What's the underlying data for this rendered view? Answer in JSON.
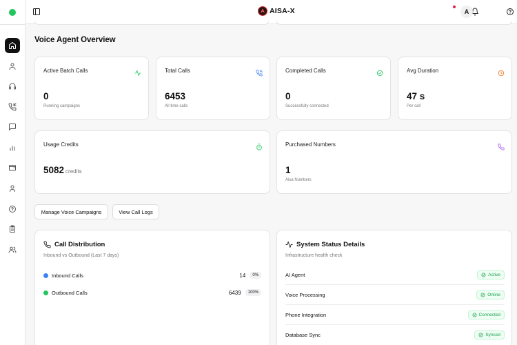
{
  "app": {
    "title": "AISA-X",
    "avatar_initial": "A"
  },
  "page": {
    "title": "Voice Agent Overview"
  },
  "sidebar": {
    "items": [
      {
        "name": "home",
        "active": true
      },
      {
        "name": "users"
      },
      {
        "name": "headset"
      },
      {
        "name": "phone-incoming"
      },
      {
        "name": "message"
      },
      {
        "name": "bar-chart"
      },
      {
        "name": "wallet"
      },
      {
        "name": "profile"
      },
      {
        "name": "help"
      },
      {
        "name": "clipboard"
      },
      {
        "name": "team"
      }
    ]
  },
  "stats": {
    "active_batch": {
      "label": "Active Batch Calls",
      "value": "0",
      "sub": "Running campaigns",
      "color": "#22c55e"
    },
    "total_calls": {
      "label": "Total Calls",
      "value": "6453",
      "sub": "All time calls",
      "color": "#3b82f6"
    },
    "completed": {
      "label": "Completed Calls",
      "value": "0",
      "sub": "Successfully connected",
      "color": "#22c55e"
    },
    "avg_duration": {
      "label": "Avg Duration",
      "value": "47 s",
      "sub": "Per call",
      "color": "#f97316"
    },
    "usage": {
      "label": "Usage Credits",
      "value": "5082",
      "unit": "credits",
      "color": "#22c55e"
    },
    "purchased": {
      "label": "Purchased Numbers",
      "value": "1",
      "sub": "Aisa Numbers",
      "color": "#a855f7"
    }
  },
  "actions": {
    "manage": "Manage Voice Campaigns",
    "logs": "View Call Logs"
  },
  "distribution": {
    "title": "Call Distribution",
    "subtitle": "Inbound vs Outbound (Last 7 days)",
    "rows": [
      {
        "label": "Inbound Calls",
        "count": "14",
        "pct": "0%",
        "color": "#3b82f6"
      },
      {
        "label": "Outbound Calls",
        "count": "6439",
        "pct": "100%",
        "color": "#22c55e"
      }
    ]
  },
  "system": {
    "title": "System Status Details",
    "subtitle": "Infrastructure health check",
    "rows": [
      {
        "label": "AI Agent",
        "status": "Active"
      },
      {
        "label": "Voice Processing",
        "status": "Online"
      },
      {
        "label": "Phone Integration",
        "status": "Connected"
      },
      {
        "label": "Database Sync",
        "status": "Synced"
      }
    ]
  }
}
